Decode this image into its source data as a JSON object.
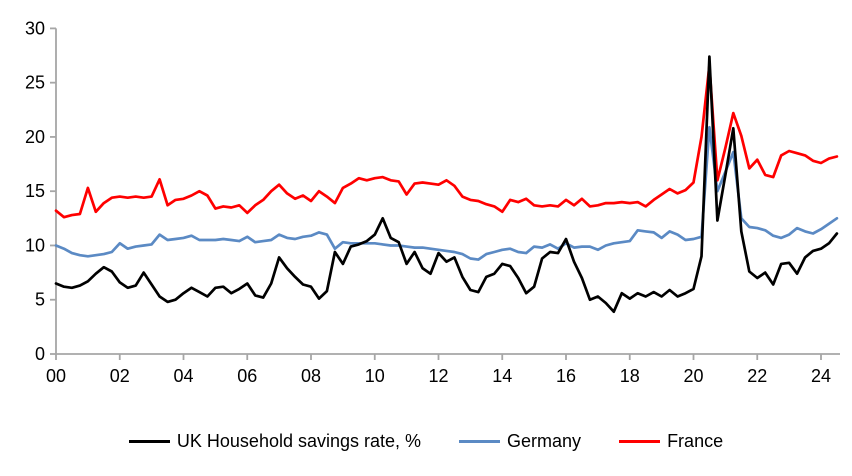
{
  "chart_data": {
    "type": "line",
    "title": "",
    "grid": false,
    "legend_position": "bottom",
    "axis_color": "#A6A6A6",
    "background_color": "#FFFFFF",
    "x_axis": {
      "tick_labels": [
        "00",
        "02",
        "04",
        "06",
        "08",
        "10",
        "12",
        "14",
        "16",
        "18",
        "20",
        "22",
        "24"
      ],
      "start_year": 2000,
      "points_per_year": 4,
      "step_per_point": 0.25
    },
    "y_axis": {
      "min": 0,
      "max": 30,
      "tick_interval": 5,
      "tick_labels": [
        "0",
        "5",
        "10",
        "15",
        "20",
        "25",
        "30"
      ]
    },
    "series": [
      {
        "name": "UK Household savings rate, %",
        "color": "#000000",
        "values": [
          6.5,
          6.2,
          6.1,
          6.3,
          6.7,
          7.4,
          8.0,
          7.6,
          6.6,
          6.1,
          6.3,
          7.5,
          6.4,
          5.3,
          4.8,
          5.0,
          5.6,
          6.1,
          5.7,
          5.3,
          6.1,
          6.2,
          5.6,
          6.0,
          6.5,
          5.4,
          5.2,
          6.5,
          8.9,
          7.9,
          7.1,
          6.4,
          6.2,
          5.1,
          5.8,
          9.4,
          8.3,
          9.9,
          10.1,
          10.4,
          11.0,
          12.5,
          10.7,
          10.3,
          8.3,
          9.4,
          7.9,
          7.4,
          9.3,
          8.5,
          8.9,
          7.1,
          5.9,
          5.7,
          7.1,
          7.4,
          8.3,
          8.1,
          7.0,
          5.6,
          6.2,
          8.8,
          9.4,
          9.3,
          10.6,
          8.5,
          7.0,
          5.0,
          5.3,
          4.7,
          3.9,
          5.6,
          5.1,
          5.6,
          5.3,
          5.7,
          5.3,
          5.9,
          5.3,
          5.6,
          6.0,
          9.0,
          27.4,
          12.3,
          16.5,
          20.8,
          11.3,
          7.6,
          7.0,
          7.5,
          6.4,
          8.3,
          8.4,
          7.4,
          8.9,
          9.5,
          9.7,
          10.2,
          11.1
        ]
      },
      {
        "name": "Germany",
        "color": "#5B8AC4",
        "values": [
          10.0,
          9.7,
          9.3,
          9.1,
          9.0,
          9.1,
          9.2,
          9.4,
          10.2,
          9.7,
          9.9,
          10.0,
          10.1,
          11.0,
          10.5,
          10.6,
          10.7,
          10.9,
          10.5,
          10.5,
          10.5,
          10.6,
          10.5,
          10.4,
          10.8,
          10.3,
          10.4,
          10.5,
          11.0,
          10.7,
          10.6,
          10.8,
          10.9,
          11.2,
          11.0,
          9.7,
          10.3,
          10.2,
          10.2,
          10.2,
          10.2,
          10.1,
          10.0,
          10.0,
          9.9,
          9.8,
          9.8,
          9.7,
          9.6,
          9.5,
          9.4,
          9.2,
          8.8,
          8.7,
          9.2,
          9.4,
          9.6,
          9.7,
          9.4,
          9.3,
          9.9,
          9.8,
          10.1,
          9.7,
          10.2,
          9.8,
          9.9,
          9.9,
          9.6,
          10.0,
          10.2,
          10.3,
          10.4,
          11.4,
          11.3,
          11.2,
          10.7,
          11.3,
          11.0,
          10.5,
          10.6,
          10.8,
          20.9,
          15.0,
          16.8,
          18.6,
          12.5,
          11.7,
          11.6,
          11.4,
          10.9,
          10.7,
          11.0,
          11.6,
          11.3,
          11.1,
          11.5,
          12.0,
          12.5
        ]
      },
      {
        "name": "France",
        "color": "#FF0000",
        "values": [
          13.2,
          12.6,
          12.8,
          12.9,
          15.3,
          13.1,
          13.9,
          14.4,
          14.5,
          14.4,
          14.5,
          14.4,
          14.5,
          16.1,
          13.7,
          14.2,
          14.3,
          14.6,
          15.0,
          14.6,
          13.4,
          13.6,
          13.5,
          13.7,
          13.0,
          13.7,
          14.2,
          15.0,
          15.6,
          14.8,
          14.3,
          14.6,
          14.1,
          15.0,
          14.5,
          13.9,
          15.3,
          15.7,
          16.2,
          16.0,
          16.2,
          16.3,
          16.0,
          15.9,
          14.7,
          15.7,
          15.8,
          15.7,
          15.6,
          16.0,
          15.5,
          14.5,
          14.2,
          14.1,
          13.8,
          13.6,
          13.1,
          14.2,
          14.0,
          14.3,
          13.7,
          13.6,
          13.7,
          13.6,
          14.2,
          13.7,
          14.3,
          13.6,
          13.7,
          13.9,
          13.9,
          14.0,
          13.9,
          14.0,
          13.6,
          14.2,
          14.7,
          15.2,
          14.8,
          15.1,
          15.8,
          20.0,
          26.6,
          16.0,
          19.0,
          22.2,
          20.1,
          17.1,
          17.9,
          16.5,
          16.3,
          18.3,
          18.7,
          18.5,
          18.3,
          17.8,
          17.6,
          18.0,
          18.2
        ]
      }
    ]
  }
}
